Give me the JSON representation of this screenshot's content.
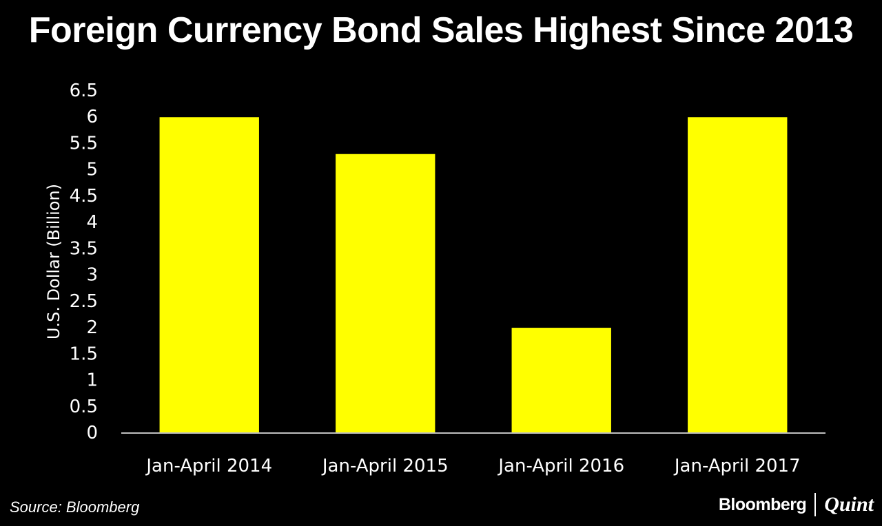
{
  "chart_data": {
    "type": "bar",
    "title": "Foreign Currency Bond Sales Highest Since 2013",
    "xlabel": "",
    "ylabel": "U.S. Dollar (Billion)",
    "categories": [
      "Jan-April 2014",
      "Jan-April 2015",
      "Jan-April 2016",
      "Jan-April 2017"
    ],
    "values": [
      6.0,
      5.3,
      2.0,
      6.0
    ],
    "ylim": [
      0,
      6.5
    ],
    "yticks": [
      "0",
      "0.5",
      "1",
      "1.5",
      "2",
      "2.5",
      "3",
      "3.5",
      "4",
      "4.5",
      "5",
      "5.5",
      "6",
      "6.5"
    ],
    "grid": false,
    "legend": "none",
    "colors": {
      "background": "#000000",
      "bar": "#ffff00",
      "text": "#ffffff",
      "axis": "#bfbfbf"
    }
  },
  "footer": {
    "source": "Source: Bloomberg",
    "brand_primary": "Bloomberg",
    "brand_secondary": "Quint"
  }
}
